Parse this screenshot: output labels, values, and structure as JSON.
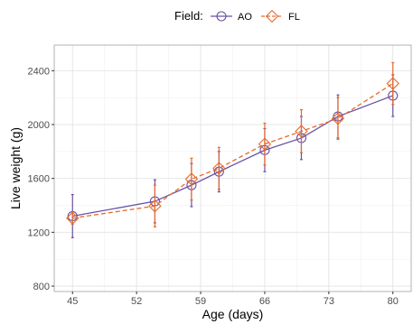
{
  "chart_data": {
    "type": "line",
    "xlabel": "Age (days)",
    "ylabel": "Live weight (g)",
    "x_ticks": [
      45,
      52,
      59,
      66,
      73,
      80
    ],
    "y_ticks": [
      800,
      1200,
      1600,
      2000,
      2400
    ],
    "xlim": [
      43,
      82
    ],
    "ylim": [
      760,
      2590
    ],
    "grid": true,
    "legend": {
      "title": "Field:",
      "position": "top"
    },
    "x": [
      45,
      54,
      58,
      61,
      66,
      70,
      74,
      80
    ],
    "series": [
      {
        "name": "AO",
        "color": "#6a51a3",
        "marker": "circle",
        "line_style": "solid",
        "values": [
          1320,
          1430,
          1550,
          1650,
          1810,
          1900,
          2060,
          2215
        ],
        "error_low": [
          1160,
          1270,
          1390,
          1500,
          1650,
          1740,
          1900,
          2060
        ],
        "error_high": [
          1480,
          1590,
          1710,
          1800,
          1970,
          2060,
          2220,
          2370
        ]
      },
      {
        "name": "FL",
        "color": "#e66a2c",
        "marker": "diamond",
        "line_style": "dashed",
        "values": [
          1305,
          1395,
          1595,
          1675,
          1855,
          1950,
          2045,
          2305
        ],
        "error_low": [
          1260,
          1240,
          1440,
          1520,
          1700,
          1790,
          1890,
          2150
        ],
        "error_high": [
          1350,
          1550,
          1750,
          1830,
          2010,
          2110,
          2200,
          2460
        ]
      }
    ]
  }
}
